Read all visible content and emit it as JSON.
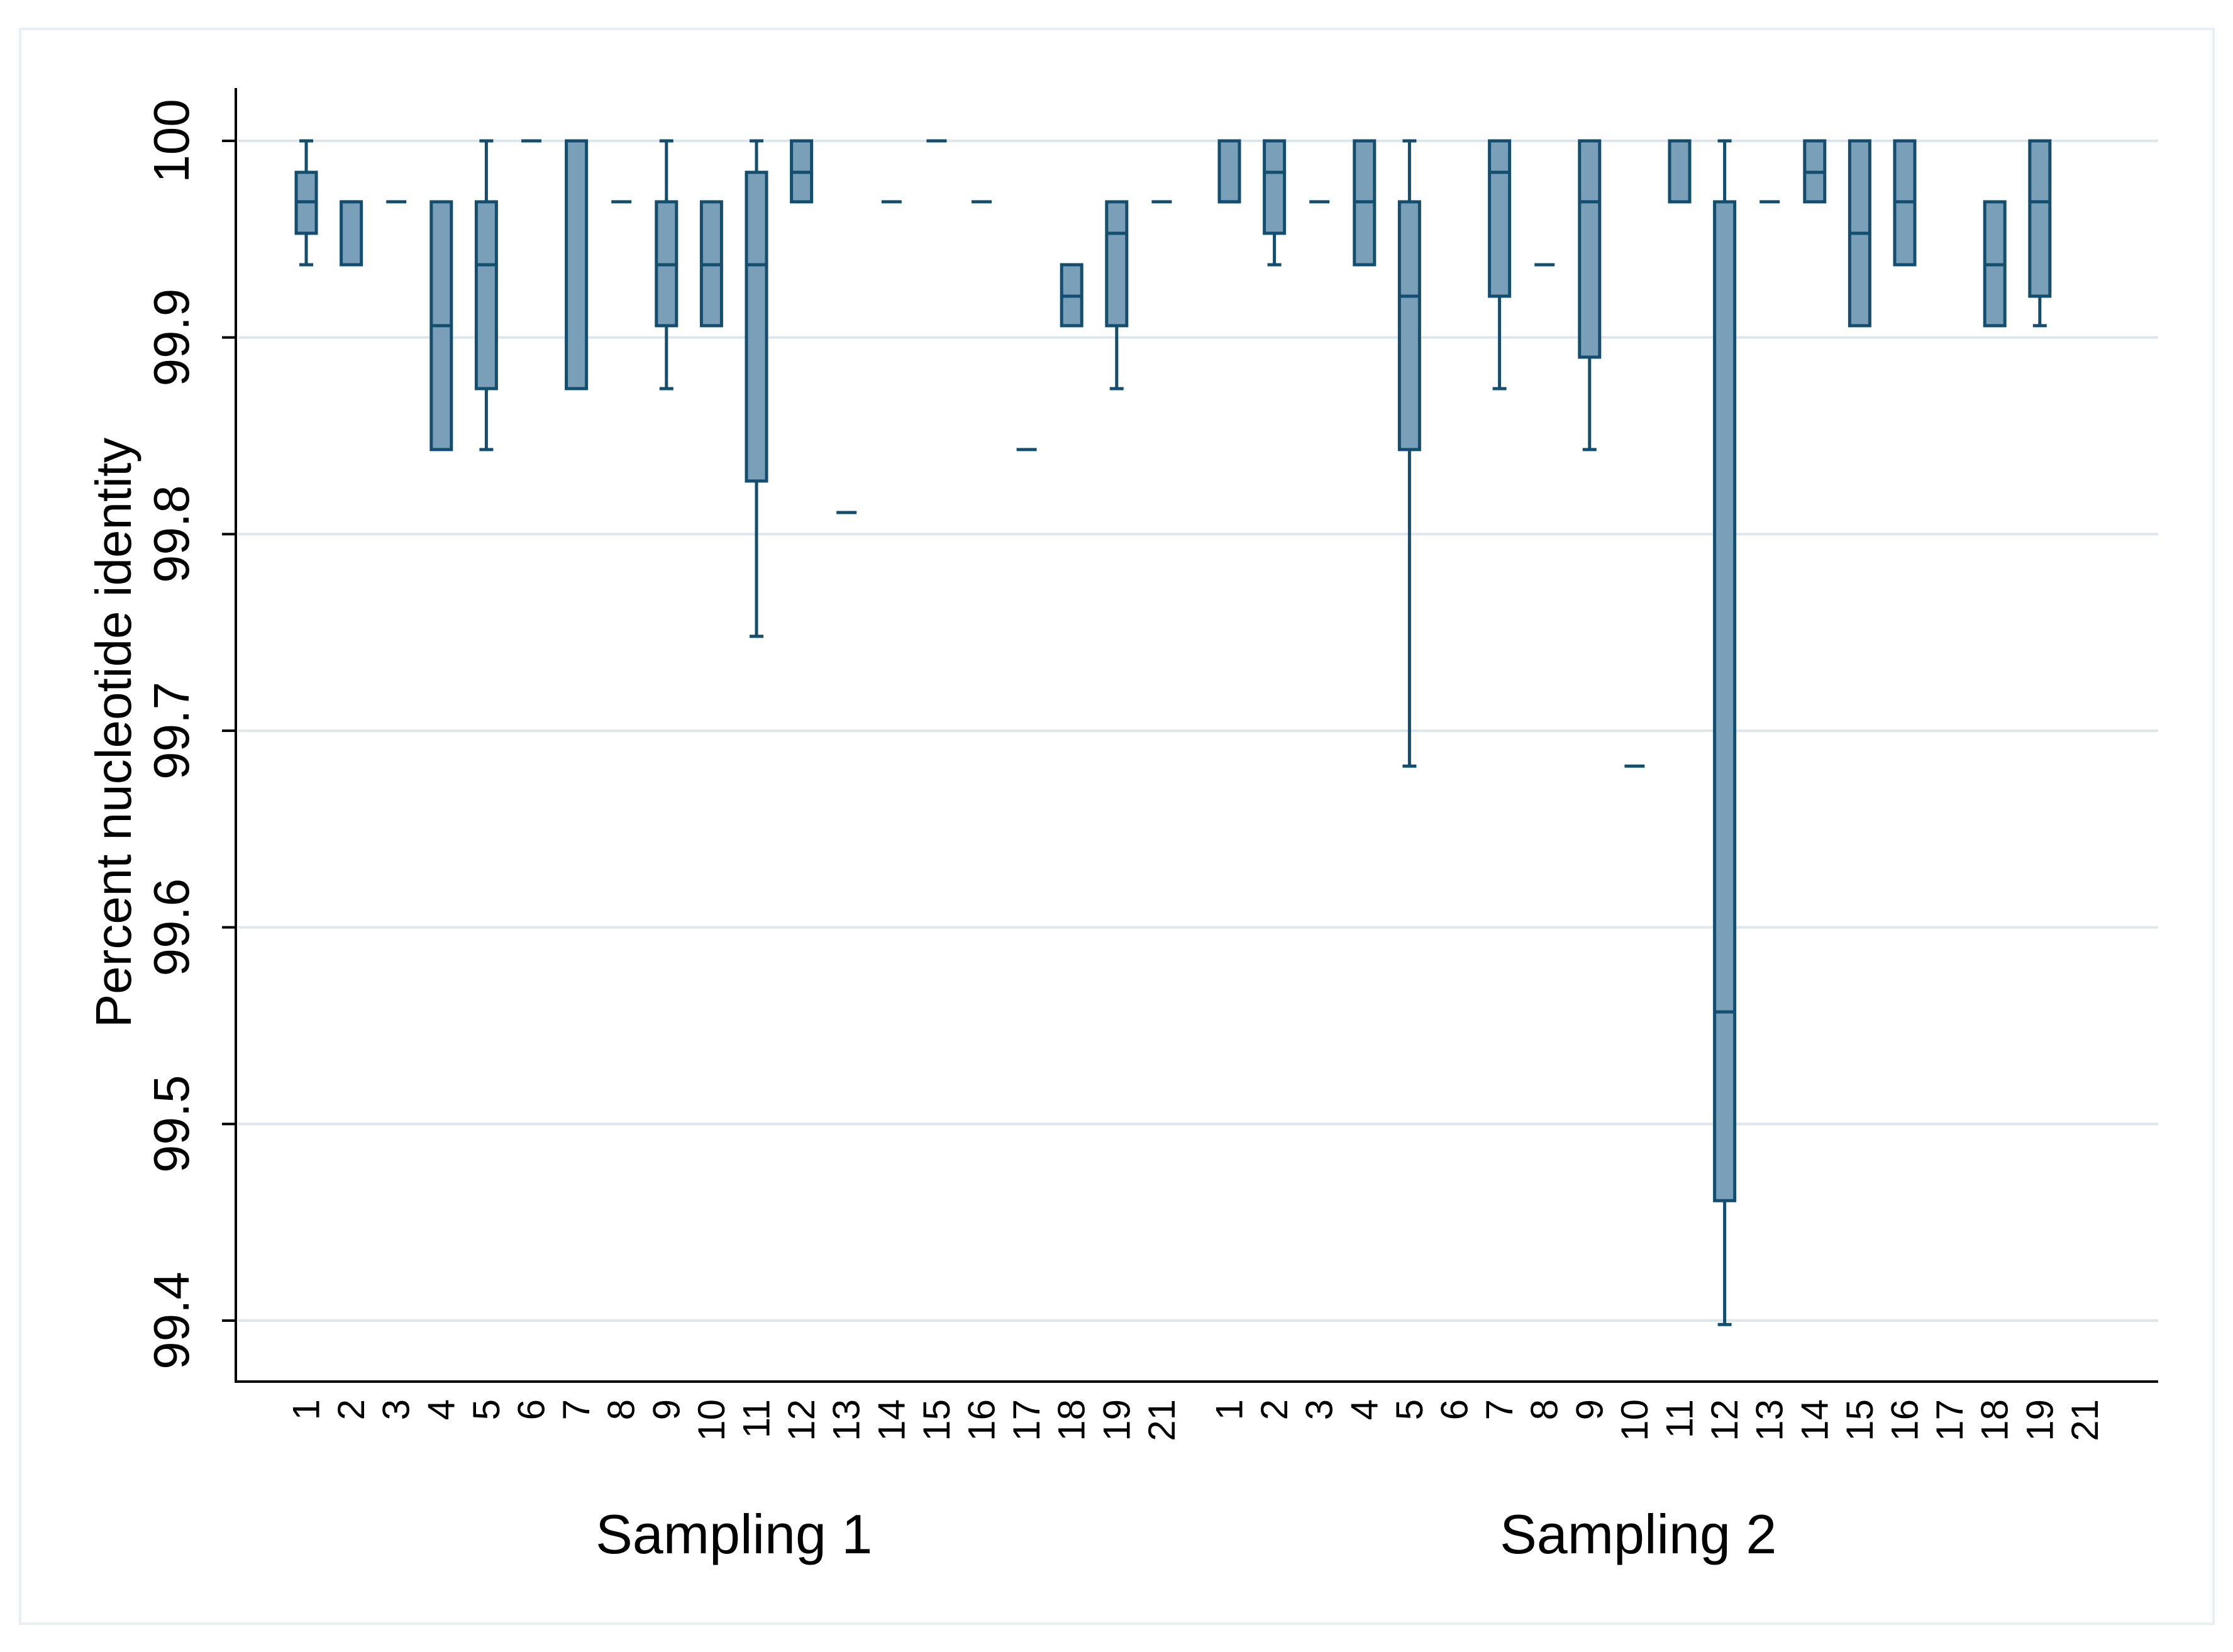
{
  "chart_data": {
    "type": "box",
    "title": "",
    "ylabel": "Percent nucleotide identity",
    "ylim": [
      99.37,
      100.03
    ],
    "yticks": [
      99.4,
      99.5,
      99.6,
      99.7,
      99.8,
      99.9,
      100
    ],
    "ytick_labels": [
      "99.4",
      "99.5",
      "99.6",
      "99.7",
      "99.8",
      "99.9",
      "100"
    ],
    "grid": true,
    "colors": {
      "box_fill": "#7a9fb8",
      "box_stroke": "#134e6f",
      "grid": "#dce6ec",
      "axis": "#000000"
    },
    "groups": [
      {
        "name": "Sampling 1",
        "boxes": [
          {
            "cat": "1",
            "min": 99.937,
            "q1": 99.953,
            "median": 99.969,
            "q3": 99.984,
            "max": 100
          },
          {
            "cat": "2",
            "min": 99.937,
            "q1": 99.937,
            "median": 99.969,
            "q3": 99.969,
            "max": 99.969
          },
          {
            "cat": "3",
            "min": 99.969,
            "q1": 99.969,
            "median": 99.969,
            "q3": 99.969,
            "max": 99.969
          },
          {
            "cat": "4",
            "min": 99.843,
            "q1": 99.843,
            "median": 99.906,
            "q3": 99.969,
            "max": 99.969
          },
          {
            "cat": "5",
            "min": 99.843,
            "q1": 99.874,
            "median": 99.937,
            "q3": 99.969,
            "max": 100
          },
          {
            "cat": "6",
            "min": 100,
            "q1": 100,
            "median": 100,
            "q3": 100,
            "max": 100
          },
          {
            "cat": "7",
            "min": 99.874,
            "q1": 99.874,
            "median": 100,
            "q3": 100,
            "max": 100
          },
          {
            "cat": "8",
            "min": 99.969,
            "q1": 99.969,
            "median": 99.969,
            "q3": 99.969,
            "max": 99.969
          },
          {
            "cat": "9",
            "min": 99.874,
            "q1": 99.906,
            "median": 99.937,
            "q3": 99.969,
            "max": 100
          },
          {
            "cat": "10",
            "min": 99.906,
            "q1": 99.906,
            "median": 99.937,
            "q3": 99.969,
            "max": 99.969
          },
          {
            "cat": "11",
            "min": 99.748,
            "q1": 99.827,
            "median": 99.937,
            "q3": 99.984,
            "max": 100
          },
          {
            "cat": "12",
            "min": 99.969,
            "q1": 99.969,
            "median": 99.984,
            "q3": 100,
            "max": 100
          },
          {
            "cat": "13",
            "min": 99.811,
            "q1": 99.811,
            "median": 99.811,
            "q3": 99.811,
            "max": 99.811
          },
          {
            "cat": "14",
            "min": 99.969,
            "q1": 99.969,
            "median": 99.969,
            "q3": 99.969,
            "max": 99.969
          },
          {
            "cat": "15",
            "min": 100,
            "q1": 100,
            "median": 100,
            "q3": 100,
            "max": 100
          },
          {
            "cat": "16",
            "min": 99.969,
            "q1": 99.969,
            "median": 99.969,
            "q3": 99.969,
            "max": 99.969
          },
          {
            "cat": "17",
            "min": 99.843,
            "q1": 99.843,
            "median": 99.843,
            "q3": 99.843,
            "max": 99.843
          },
          {
            "cat": "18",
            "min": 99.906,
            "q1": 99.906,
            "median": 99.921,
            "q3": 99.937,
            "max": 99.937
          },
          {
            "cat": "19",
            "min": 99.874,
            "q1": 99.906,
            "median": 99.953,
            "q3": 99.969,
            "max": 99.969
          },
          {
            "cat": "21",
            "min": 99.969,
            "q1": 99.969,
            "median": 99.969,
            "q3": 99.969,
            "max": 99.969
          }
        ]
      },
      {
        "name": "Sampling 2",
        "boxes": [
          {
            "cat": "1",
            "min": 99.969,
            "q1": 99.969,
            "median": 99.969,
            "q3": 100,
            "max": 100
          },
          {
            "cat": "2",
            "min": 99.937,
            "q1": 99.953,
            "median": 99.984,
            "q3": 100,
            "max": 100
          },
          {
            "cat": "3",
            "min": 99.969,
            "q1": 99.969,
            "median": 99.969,
            "q3": 99.969,
            "max": 99.969
          },
          {
            "cat": "4",
            "min": 99.937,
            "q1": 99.937,
            "median": 99.969,
            "q3": 100,
            "max": 100
          },
          {
            "cat": "5",
            "min": 99.682,
            "q1": 99.843,
            "median": 99.921,
            "q3": 99.969,
            "max": 100
          },
          {
            "cat": "6",
            "min": null,
            "q1": null,
            "median": null,
            "q3": null,
            "max": null
          },
          {
            "cat": "7",
            "min": 99.874,
            "q1": 99.921,
            "median": 99.984,
            "q3": 100,
            "max": 100
          },
          {
            "cat": "8",
            "min": 99.937,
            "q1": 99.937,
            "median": 99.937,
            "q3": 99.937,
            "max": 99.937
          },
          {
            "cat": "9",
            "min": 99.843,
            "q1": 99.89,
            "median": 99.969,
            "q3": 100,
            "max": 100
          },
          {
            "cat": "10",
            "min": 99.682,
            "q1": 99.682,
            "median": 99.682,
            "q3": 99.682,
            "max": 99.682
          },
          {
            "cat": "11",
            "min": 99.969,
            "q1": 99.969,
            "median": 100,
            "q3": 100,
            "max": 100
          },
          {
            "cat": "12",
            "min": 99.398,
            "q1": 99.461,
            "median": 99.557,
            "q3": 99.969,
            "max": 100
          },
          {
            "cat": "13",
            "min": 99.969,
            "q1": 99.969,
            "median": 99.969,
            "q3": 99.969,
            "max": 99.969
          },
          {
            "cat": "14",
            "min": 99.969,
            "q1": 99.969,
            "median": 99.984,
            "q3": 100,
            "max": 100
          },
          {
            "cat": "15",
            "min": 99.906,
            "q1": 99.906,
            "median": 99.953,
            "q3": 100,
            "max": 100
          },
          {
            "cat": "16",
            "min": 99.937,
            "q1": 99.937,
            "median": 99.969,
            "q3": 100,
            "max": 100
          },
          {
            "cat": "17",
            "min": null,
            "q1": null,
            "median": null,
            "q3": null,
            "max": null
          },
          {
            "cat": "18",
            "min": 99.906,
            "q1": 99.906,
            "median": 99.937,
            "q3": 99.969,
            "max": 99.969
          },
          {
            "cat": "19",
            "min": 99.906,
            "q1": 99.921,
            "median": 99.969,
            "q3": 100,
            "max": 100
          },
          {
            "cat": "21",
            "min": null,
            "q1": null,
            "median": null,
            "q3": null,
            "max": null
          }
        ]
      }
    ]
  }
}
